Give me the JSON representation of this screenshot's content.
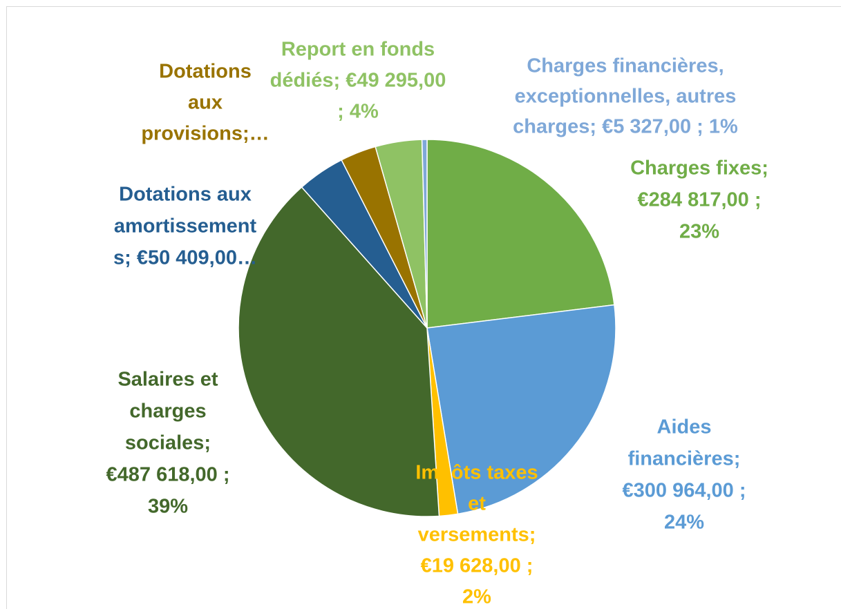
{
  "chart_data": {
    "type": "pie",
    "values": [
      284817,
      300964,
      19628,
      487618,
      50409,
      38000,
      49295,
      5327
    ],
    "labels": [
      [
        "Charges fixes;",
        "€284 817,00 ;",
        "23%"
      ],
      [
        "Aides",
        "financières;",
        "€300 964,00 ;",
        "24%"
      ],
      [
        "Impôts taxes",
        "et",
        "versements;",
        "€19 628,00 ;",
        "2%"
      ],
      [
        "Salaires et",
        "charges",
        "sociales;",
        "€487 618,00 ;",
        "39%"
      ],
      [
        "Dotations aux",
        "amortissement",
        "s;  €50 409,00…"
      ],
      [
        "Dotations",
        "aux",
        "provisions;…"
      ],
      [
        "Report en fonds",
        "dédiés;  €49 295,00",
        "; 4%"
      ],
      [
        "Charges financières,",
        "exceptionnelles, autres",
        "charges;  €5 327,00 ; 1%"
      ]
    ],
    "colors": [
      "#70ad47",
      "#5b9bd5",
      "#ffc000",
      "#43682b",
      "#255e91",
      "#997300",
      "#8fc264",
      "#7fa8d8"
    ],
    "label_colors": [
      "#70ad47",
      "#5b9bd5",
      "#ffc000",
      "#43682b",
      "#255e91",
      "#997300",
      "#8fc264",
      "#7fa8d8"
    ]
  }
}
